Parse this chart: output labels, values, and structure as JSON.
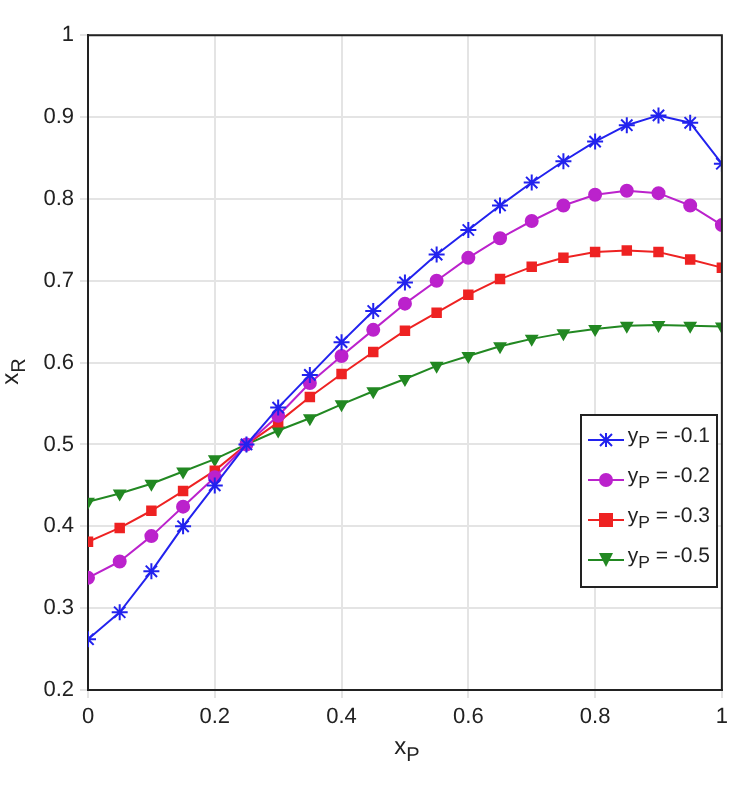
{
  "chart_data": {
    "type": "line",
    "xlabel": "x$_{P}$",
    "ylabel": "x$_{R}$",
    "x": [
      0,
      0.05,
      0.1,
      0.15,
      0.2,
      0.25,
      0.3,
      0.35,
      0.4,
      0.45,
      0.5,
      0.55,
      0.6,
      0.65,
      0.7,
      0.75,
      0.8,
      0.85,
      0.9,
      0.95,
      1
    ],
    "series": [
      {
        "name": "y$_{P}$ = -0.1",
        "color": "#2222ee",
        "marker": "cross",
        "values": [
          0.262,
          0.295,
          0.345,
          0.4,
          0.45,
          0.5,
          0.545,
          0.585,
          0.625,
          0.663,
          0.698,
          0.732,
          0.762,
          0.792,
          0.82,
          0.846,
          0.87,
          0.89,
          0.902,
          0.893,
          0.843
        ]
      },
      {
        "name": "y$_{P}$ = -0.2",
        "color": "#bb22cc",
        "marker": "circle",
        "values": [
          0.337,
          0.357,
          0.388,
          0.424,
          0.46,
          0.5,
          0.535,
          0.575,
          0.608,
          0.64,
          0.672,
          0.7,
          0.728,
          0.752,
          0.773,
          0.792,
          0.805,
          0.81,
          0.807,
          0.792,
          0.768
        ]
      },
      {
        "name": "y$_{P}$ = -0.3",
        "color": "#ee2222",
        "marker": "square",
        "values": [
          0.381,
          0.398,
          0.419,
          0.443,
          0.468,
          0.5,
          0.527,
          0.558,
          0.586,
          0.613,
          0.639,
          0.661,
          0.683,
          0.702,
          0.717,
          0.728,
          0.735,
          0.737,
          0.735,
          0.726,
          0.716
        ]
      },
      {
        "name": "y$_{P}$ = -0.5",
        "color": "#228822",
        "marker": "triangle",
        "values": [
          0.43,
          0.44,
          0.452,
          0.467,
          0.482,
          0.5,
          0.517,
          0.532,
          0.549,
          0.565,
          0.58,
          0.596,
          0.608,
          0.62,
          0.629,
          0.636,
          0.641,
          0.645,
          0.646,
          0.645,
          0.644
        ]
      }
    ],
    "xlim": [
      0,
      1
    ],
    "xticks": [
      0,
      0.2,
      0.4,
      0.6,
      0.8,
      1
    ],
    "ylim": [
      0.2,
      1
    ],
    "yticks": [
      0.2,
      0.3,
      0.4,
      0.5,
      0.6,
      0.7,
      0.8,
      0.9,
      1
    ],
    "grid": true,
    "legend": "right",
    "line_style": "solid"
  }
}
